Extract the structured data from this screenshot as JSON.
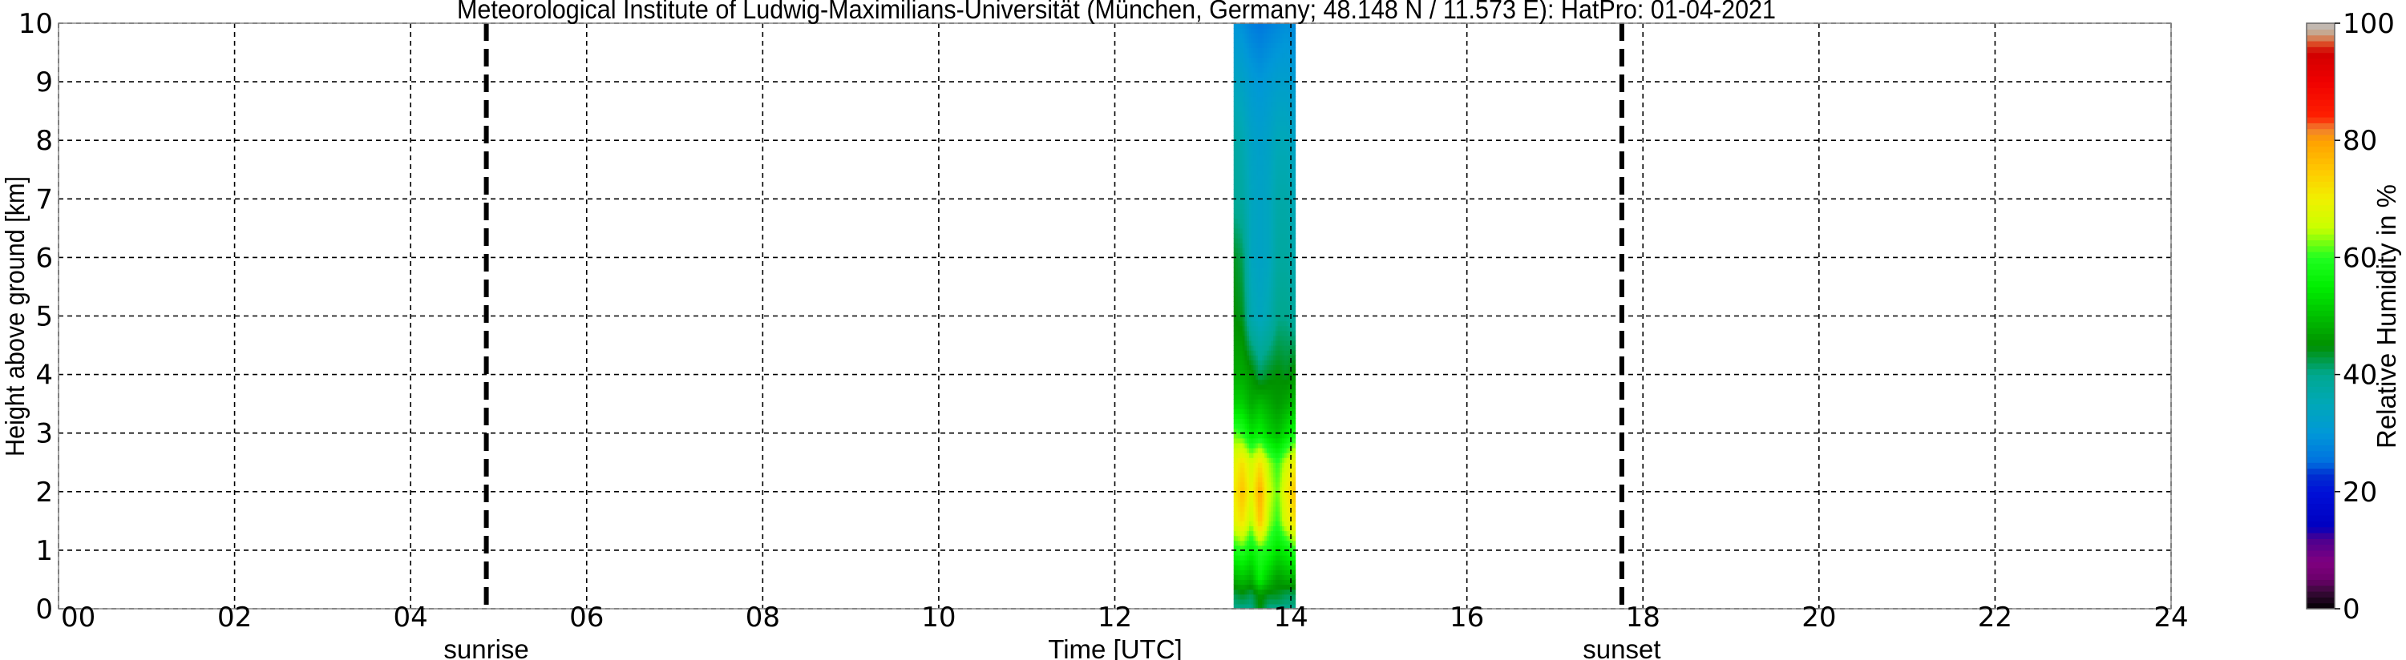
{
  "chart_data": {
    "type": "heatmap",
    "title": "Meteorological Institute of Ludwig-Maximilians-Universität (München, Germany; 48.148 N / 11.573 E):    HatPro: 01-04-2021",
    "xlabel": "Time [UTC]",
    "ylabel": "Height above ground [km]",
    "colorbar_label": "Relative Humidity in %",
    "xlim": [
      0,
      24
    ],
    "ylim": [
      0,
      10
    ],
    "clim": [
      0,
      100
    ],
    "grid": true,
    "x_ticks": [
      0,
      2,
      4,
      6,
      8,
      10,
      12,
      14,
      16,
      18,
      20,
      22,
      24
    ],
    "x_tick_labels": [
      "00",
      "02",
      "04",
      "06",
      "08",
      "10",
      "12",
      "14",
      "16",
      "18",
      "20",
      "22",
      "24"
    ],
    "y_ticks": [
      0,
      1,
      2,
      3,
      4,
      5,
      6,
      7,
      8,
      9,
      10
    ],
    "y_tick_labels": [
      "0",
      "1",
      "2",
      "3",
      "4",
      "5",
      "6",
      "7",
      "8",
      "9",
      "10"
    ],
    "colorbar_ticks": [
      0,
      20,
      40,
      60,
      80,
      100
    ],
    "colorbar_tick_labels": [
      "0",
      "20",
      "40",
      "60",
      "80",
      "100"
    ],
    "vertical_lines": [
      {
        "label": "sunrise",
        "x": 4.86
      },
      {
        "label": "sunset",
        "x": 17.76
      }
    ],
    "time": [
      13.35,
      13.45,
      13.55,
      13.65,
      13.75,
      13.85,
      13.95,
      14.05
    ],
    "height": [
      0,
      0.25,
      0.5,
      1,
      1.5,
      2,
      2.5,
      3,
      3.5,
      4,
      5,
      6,
      7,
      8,
      9,
      10
    ],
    "rh": [
      [
        40,
        40,
        40,
        45,
        40,
        40,
        40,
        40
      ],
      [
        42,
        44,
        42,
        46,
        44,
        44,
        42,
        42
      ],
      [
        48,
        50,
        48,
        56,
        50,
        46,
        48,
        48
      ],
      [
        58,
        60,
        56,
        60,
        58,
        54,
        56,
        60
      ],
      [
        68,
        72,
        64,
        76,
        64,
        60,
        68,
        72
      ],
      [
        70,
        76,
        68,
        79,
        66,
        62,
        70,
        76
      ],
      [
        68,
        72,
        66,
        72,
        64,
        60,
        66,
        70
      ],
      [
        62,
        60,
        54,
        56,
        52,
        50,
        54,
        58
      ],
      [
        52,
        52,
        48,
        50,
        48,
        46,
        48,
        50
      ],
      [
        48,
        48,
        46,
        42,
        44,
        45,
        44,
        46
      ],
      [
        45,
        44,
        36,
        34,
        36,
        40,
        40,
        38
      ],
      [
        44,
        42,
        34,
        33,
        34,
        38,
        38,
        36
      ],
      [
        39,
        38,
        34,
        33,
        34,
        37,
        37,
        35
      ],
      [
        38,
        36,
        33,
        32,
        33,
        35,
        35,
        33
      ],
      [
        34,
        33,
        31,
        30,
        31,
        32,
        32,
        31
      ],
      [
        30,
        29,
        27,
        26,
        27,
        28,
        29,
        28
      ]
    ],
    "colormap": [
      [
        0,
        "#000000"
      ],
      [
        3,
        "#3a0a3a"
      ],
      [
        5,
        "#6a006a"
      ],
      [
        8,
        "#800080"
      ],
      [
        12,
        "#4a0090"
      ],
      [
        14,
        "#0000c0"
      ],
      [
        20,
        "#0010d8"
      ],
      [
        23,
        "#0030d0"
      ],
      [
        25,
        "#0070e0"
      ],
      [
        30,
        "#0098d8"
      ],
      [
        35,
        "#00a8b8"
      ],
      [
        40,
        "#00a890"
      ],
      [
        45,
        "#009000"
      ],
      [
        55,
        "#00ee00"
      ],
      [
        60,
        "#20ff20"
      ],
      [
        65,
        "#c8ff00"
      ],
      [
        70,
        "#f0f000"
      ],
      [
        75,
        "#ffc800"
      ],
      [
        80,
        "#ffa000"
      ],
      [
        82,
        "#f08030"
      ],
      [
        84,
        "#ff2000"
      ],
      [
        90,
        "#f00000"
      ],
      [
        95,
        "#d00000"
      ],
      [
        97,
        "#e06030"
      ],
      [
        98,
        "#c8a080"
      ],
      [
        100,
        "#c0c0c0"
      ]
    ]
  }
}
